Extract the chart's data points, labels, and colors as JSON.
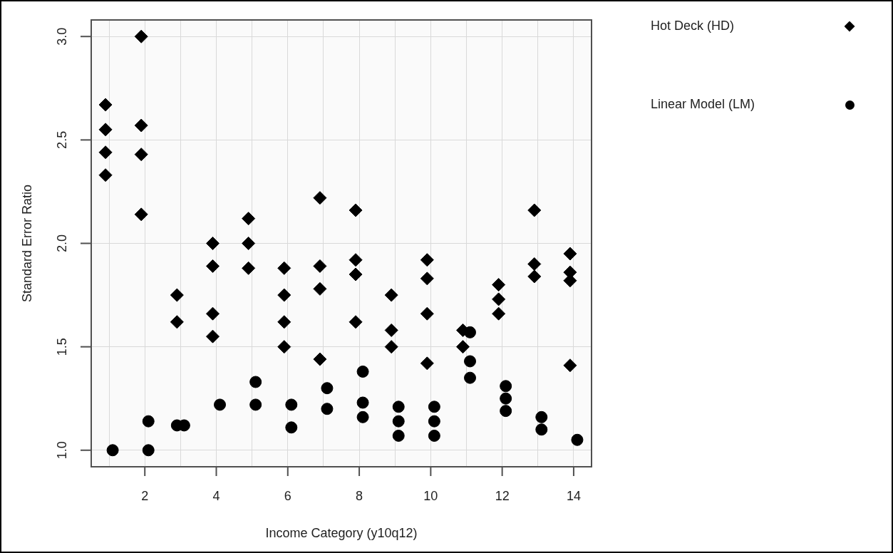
{
  "chart_data": {
    "type": "scatter",
    "xlabel": "Income Category (y10q12)",
    "ylabel": "Standard Error Ratio",
    "xlim": [
      0.5,
      14.5
    ],
    "ylim": [
      0.92,
      3.08
    ],
    "xticks": [
      {
        "value": 1,
        "label": null
      },
      2,
      {
        "value": 3,
        "label": null
      },
      4,
      {
        "value": 5,
        "label": null
      },
      6,
      {
        "value": 7,
        "label": null
      },
      8,
      {
        "value": 9,
        "label": null
      },
      10,
      {
        "value": 11,
        "label": null
      },
      12,
      {
        "value": 13,
        "label": null
      },
      14
    ],
    "yticks": [
      {
        "value": 1,
        "label": "1.0"
      },
      1.5,
      {
        "value": 2,
        "label": "2.0"
      },
      2.5,
      {
        "value": 3,
        "label": "3.0"
      }
    ],
    "grid": true,
    "legend": "top right",
    "series": [
      {
        "name": "Hot Deck (HD)",
        "color": "#000000",
        "marker": "diamond",
        "x": [
          0.9,
          0.9,
          0.9,
          0.9,
          1.9,
          1.9,
          1.9,
          1.9,
          2.9,
          2.9,
          3.9,
          3.9,
          3.9,
          3.9,
          4.9,
          4.9,
          4.9,
          5.9,
          5.9,
          5.9,
          5.9,
          6.9,
          6.9,
          6.9,
          6.9,
          7.9,
          7.9,
          7.9,
          7.9,
          8.9,
          8.9,
          8.9,
          9.9,
          9.9,
          9.9,
          9.9,
          10.9,
          10.9,
          11.9,
          11.9,
          11.9,
          12.9,
          12.9,
          12.9,
          13.9,
          13.9,
          13.9,
          13.9
        ],
        "values": [
          2.67,
          2.55,
          2.44,
          2.33,
          3.0,
          2.57,
          2.43,
          2.14,
          1.75,
          1.62,
          2.0,
          1.89,
          1.66,
          1.55,
          2.12,
          2.0,
          1.88,
          1.88,
          1.75,
          1.62,
          1.5,
          2.22,
          1.89,
          1.78,
          1.44,
          2.16,
          1.92,
          1.85,
          1.62,
          1.75,
          1.58,
          1.5,
          1.92,
          1.83,
          1.66,
          1.42,
          1.58,
          1.5,
          1.8,
          1.73,
          1.66,
          2.16,
          1.9,
          1.84,
          1.95,
          1.86,
          1.82,
          1.41
        ]
      },
      {
        "name": "Linear Model (LM)",
        "color": "#000000",
        "marker": "circle",
        "x": [
          1.1,
          2.1,
          2.1,
          2.9,
          3.1,
          4.1,
          5.1,
          5.1,
          6.1,
          6.1,
          7.1,
          7.1,
          8.1,
          8.1,
          8.1,
          9.1,
          9.1,
          9.1,
          10.1,
          10.1,
          10.1,
          11.1,
          11.1,
          11.1,
          12.1,
          12.1,
          12.1,
          13.1,
          13.1,
          14.1
        ],
        "values": [
          1.0,
          1.14,
          1.0,
          1.12,
          1.12,
          1.22,
          1.33,
          1.22,
          1.22,
          1.11,
          1.3,
          1.2,
          1.38,
          1.23,
          1.16,
          1.21,
          1.14,
          1.07,
          1.21,
          1.14,
          1.07,
          1.57,
          1.43,
          1.35,
          1.31,
          1.25,
          1.19,
          1.16,
          1.1,
          1.05
        ]
      }
    ]
  }
}
